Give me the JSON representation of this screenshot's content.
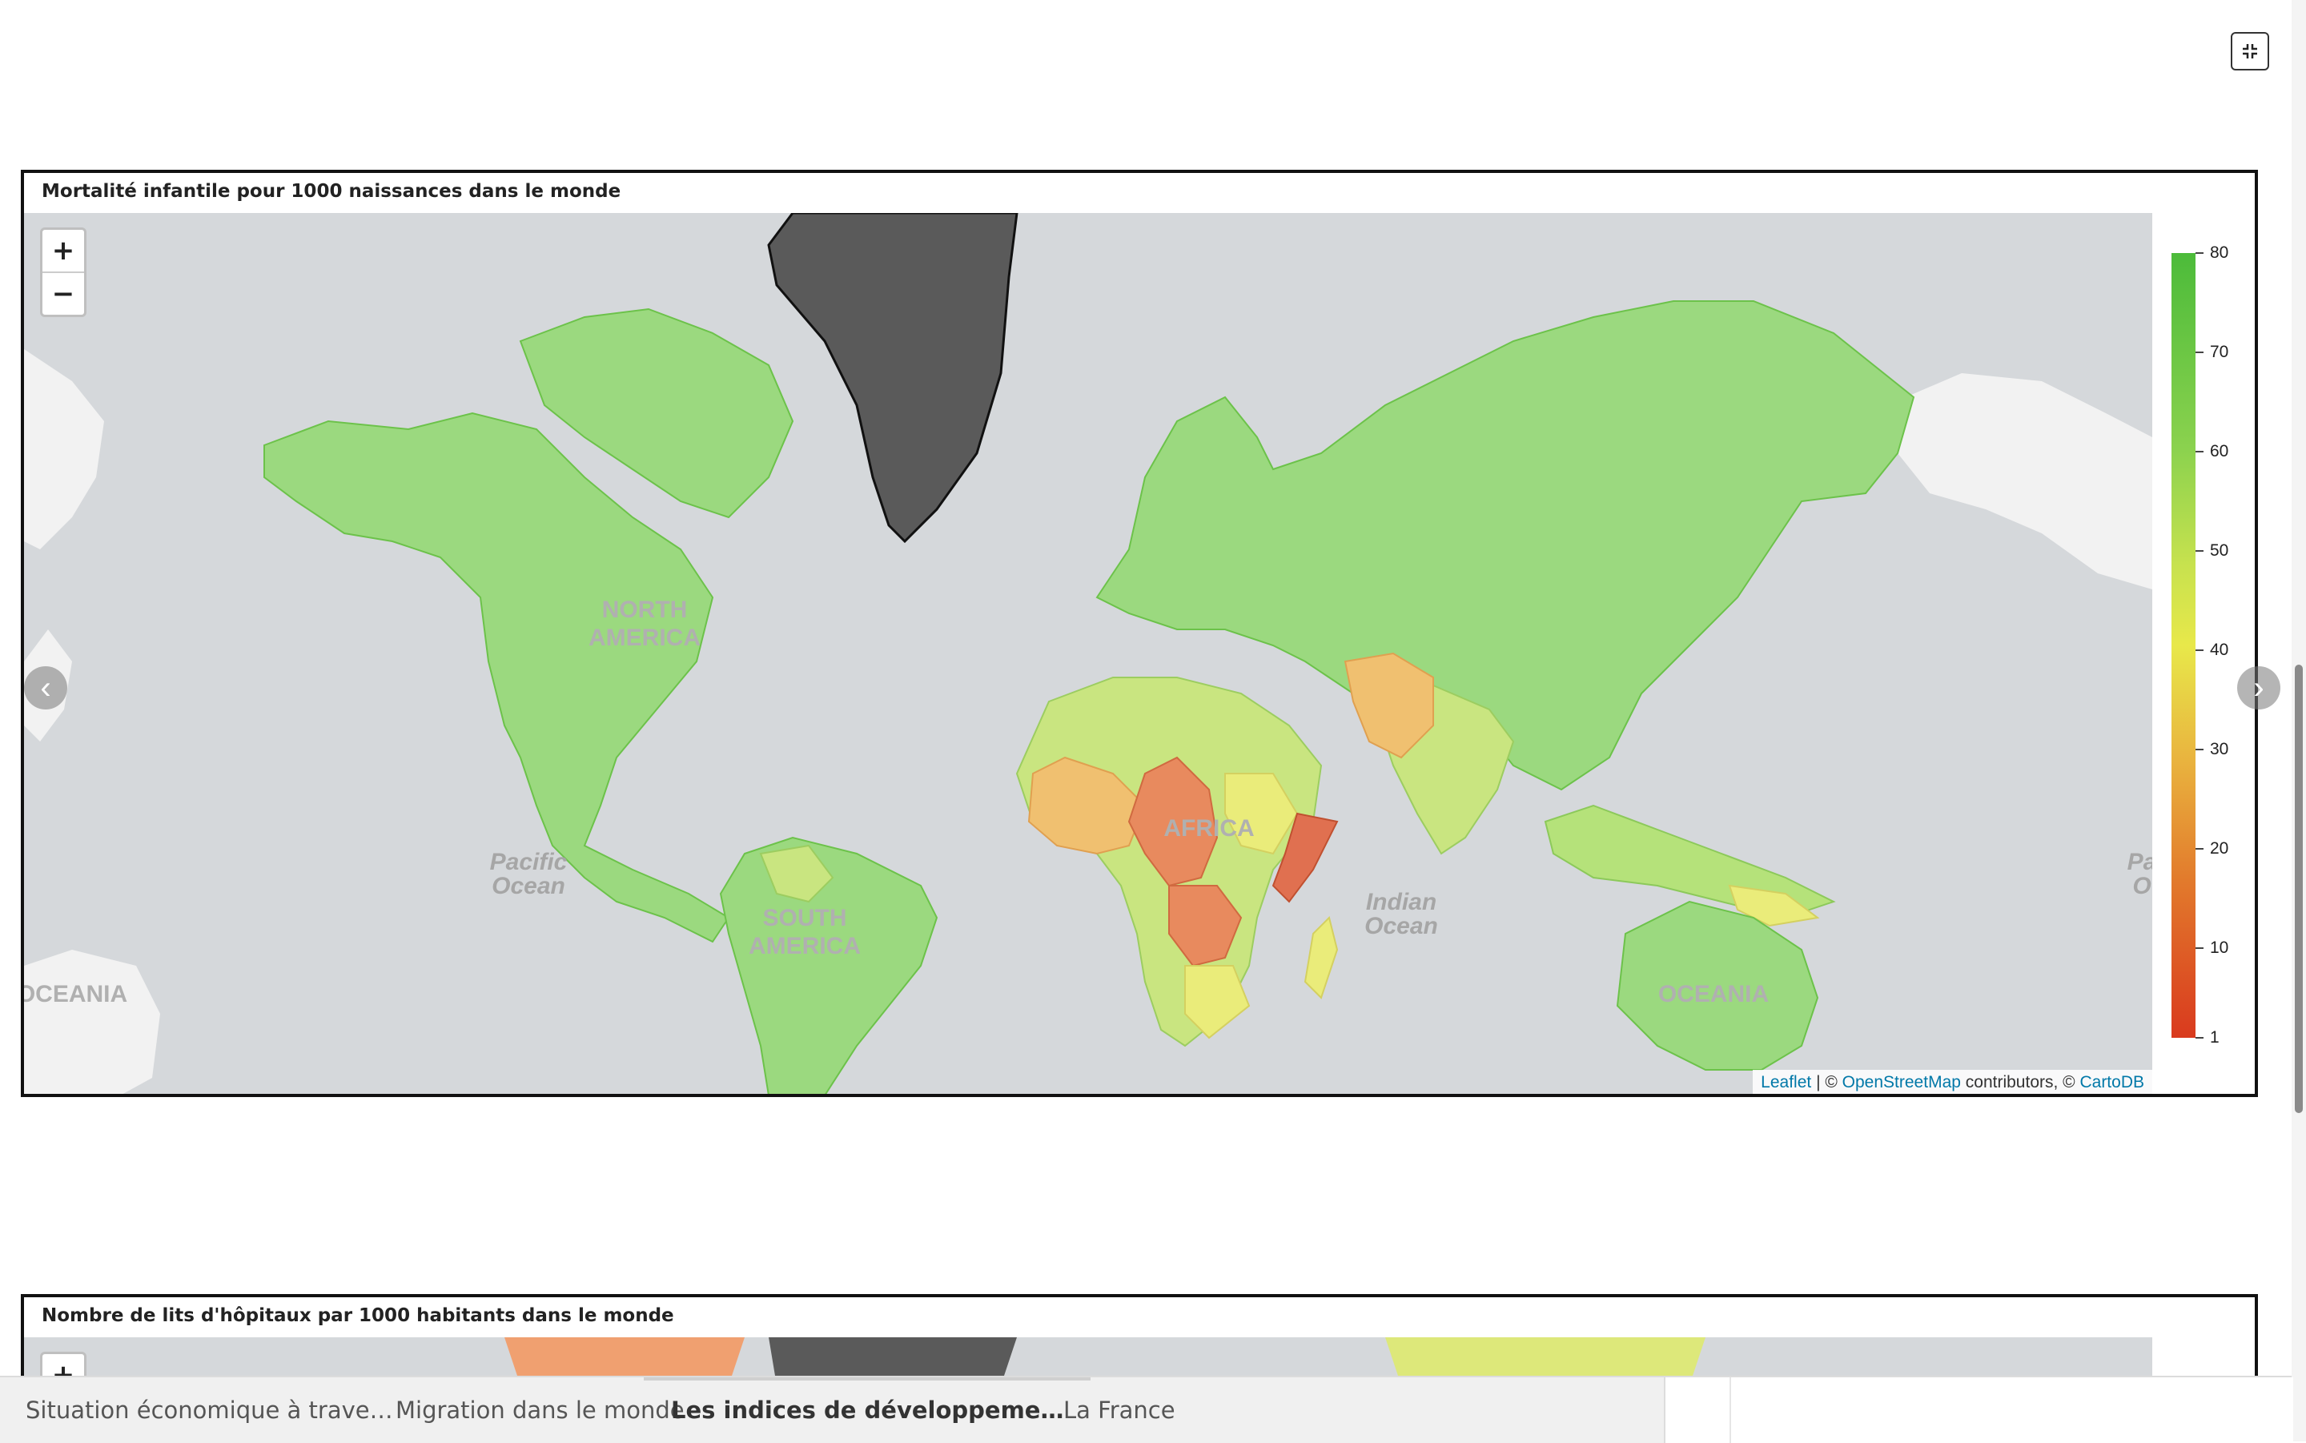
{
  "fullscreen": {
    "icon": "collapse-icon"
  },
  "panel1": {
    "title": "Mortalité infantile pour 1000 naissances dans le monde",
    "zoom_in": "+",
    "zoom_out": "−",
    "labels": {
      "north_america": [
        "NORTH",
        "AMERICA"
      ],
      "south_america": [
        "SOUTH",
        "AMERICA"
      ],
      "africa": "AFRICA",
      "oceania": "OCEANIA",
      "oceania_left": "OCEANIA",
      "pacific": [
        "Pacific",
        "Ocean"
      ],
      "indian": [
        "Indian",
        "Ocean"
      ],
      "pacific_right": [
        "Pa",
        "O"
      ]
    },
    "attribution": {
      "leaflet": "Leaflet",
      "sep": " | © ",
      "osm": "OpenStreetMap",
      "contrib": " contributors, © ",
      "carto": "CartoDB"
    },
    "legend": {
      "ticks": [
        "80",
        "70",
        "60",
        "50",
        "40",
        "30",
        "20",
        "10",
        "1"
      ],
      "colors": {
        "high": "#4cbb3a",
        "mid": "#e8e84a",
        "low": "#d93a1e"
      }
    },
    "colors": {
      "ocean": "#d5d8db",
      "land_default": "#9bd97f",
      "greenland": "#5a5a5a",
      "unmapped_land": "#f2f2f2",
      "africa_high": "#e88a5e",
      "africa_mid": "#f0c070",
      "yellow": "#eaec7a"
    }
  },
  "panel2": {
    "title": "Nombre de lits d'hôpitaux par 1000 habitants dans le monde",
    "zoom_in": "+"
  },
  "carousel": {
    "prev": "‹",
    "next": "›"
  },
  "tabs": [
    {
      "label": "Situation économique à trave…",
      "active": false
    },
    {
      "label": "Migration dans le monde",
      "active": false
    },
    {
      "label": "Les indices de développeme…",
      "active": true
    },
    {
      "label": "La France",
      "active": false
    }
  ]
}
